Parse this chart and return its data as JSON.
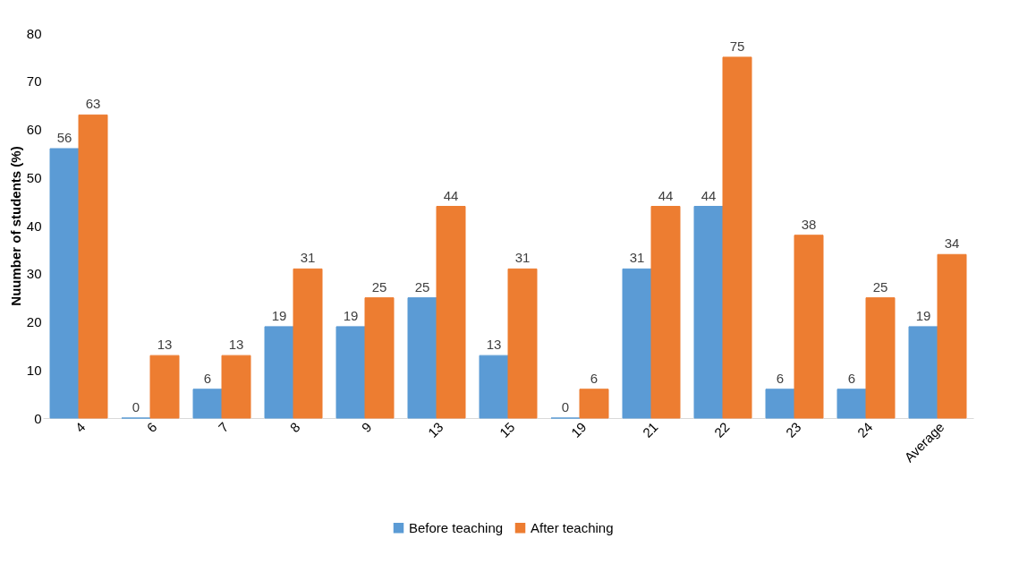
{
  "chart_data": {
    "type": "bar",
    "ylabel": "Nuumber of students (%)",
    "categories": [
      "4",
      "6",
      "7",
      "8",
      "9",
      "13",
      "15",
      "19",
      "21",
      "22",
      "23",
      "24",
      "Average"
    ],
    "series": [
      {
        "name": "Before teaching",
        "color": "#5b9bd5",
        "values": [
          56,
          0,
          6,
          19,
          19,
          25,
          13,
          0,
          31,
          44,
          6,
          6,
          19
        ]
      },
      {
        "name": "After teaching",
        "color": "#ed7d31",
        "values": [
          63,
          13,
          13,
          31,
          25,
          44,
          31,
          6,
          44,
          75,
          38,
          25,
          34
        ]
      }
    ],
    "ylim": [
      0,
      80
    ],
    "yticks": [
      0,
      10,
      20,
      30,
      40,
      50,
      60,
      70,
      80
    ],
    "grid": false,
    "legend": "bottom",
    "data_labels": true
  }
}
